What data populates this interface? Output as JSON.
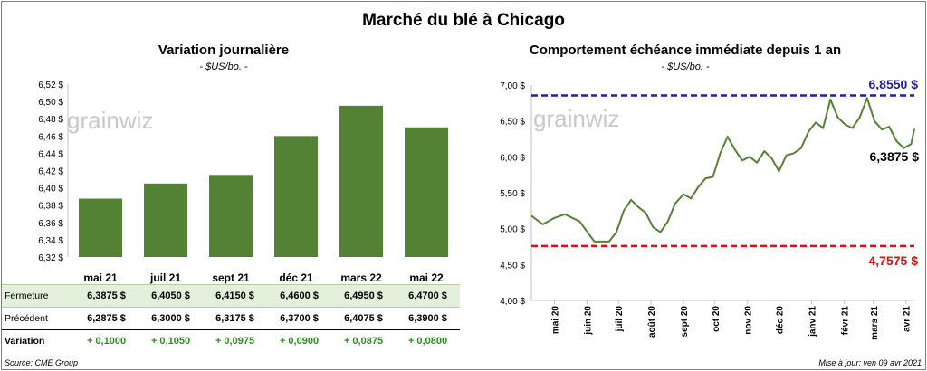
{
  "title": "Marché du blé à Chicago",
  "left": {
    "title": "Variation journalière",
    "subtitle": "- $US/bo. -",
    "watermark": "grainwiz",
    "table": {
      "rows": [
        {
          "label": "Fermeture",
          "values": [
            "6,3875 $",
            "6,4050 $",
            "6,4150 $",
            "6,4600 $",
            "6,4950 $",
            "6,4700 $"
          ]
        },
        {
          "label": "Précédent",
          "values": [
            "6,2875 $",
            "6,3000 $",
            "6,3175 $",
            "6,3700 $",
            "6,4075 $",
            "6,3900 $"
          ]
        },
        {
          "label": "Variation",
          "values": [
            "+ 0,1000",
            "+ 0,1050",
            "+ 0,0975",
            "+ 0,0900",
            "+ 0,0875",
            "+ 0,0800"
          ]
        }
      ]
    },
    "source": "Source: CME Group"
  },
  "right": {
    "title": "Comportement  échéance immédiate depuis 1 an",
    "subtitle": "- $US/bo. -",
    "watermark": "grainwiz",
    "high_label": "6,8550 $",
    "low_label": "4,7575 $",
    "last_label": "6,3875 $",
    "updated": "Mise à jour: ven 09 avr 2021"
  },
  "colors": {
    "bar": "#548235",
    "line": "#548235",
    "high": "#1f1fa8",
    "low": "#e01010",
    "positive": "#2e8b1e",
    "highlight_row": "#e2efda"
  },
  "chart_data": [
    {
      "type": "bar",
      "categories": [
        "mai 21",
        "juil 21",
        "sept 21",
        "déc 21",
        "mars 22",
        "mai 22"
      ],
      "values": [
        6.3875,
        6.405,
        6.415,
        6.46,
        6.495,
        6.47
      ],
      "title": "Variation journalière",
      "ylabel": "",
      "ylim": [
        6.32,
        6.52
      ],
      "yticks": [
        "6,32 $",
        "6,34 $",
        "6,36 $",
        "6,38 $",
        "6,40 $",
        "6,42 $",
        "6,44 $",
        "6,46 $",
        "6,48 $",
        "6,50 $",
        "6,52 $"
      ],
      "grid": false
    },
    {
      "type": "line",
      "title": "Comportement  échéance immédiate depuis 1 an",
      "ylim": [
        4.0,
        7.0
      ],
      "yticks": [
        "4,00 $",
        "4,50 $",
        "5,00 $",
        "5,50 $",
        "6,00 $",
        "6,50 $",
        "7,00 $"
      ],
      "xticks": [
        "mai 20",
        "juin 20",
        "juil 20",
        "août 20",
        "sept 20",
        "oct 20",
        "nov 20",
        "déc 20",
        "janv 21",
        "févr 21",
        "mars 21",
        "avr 21"
      ],
      "x": [
        "2020-04-09",
        "2020-04-20",
        "2020-05-01",
        "2020-05-11",
        "2020-05-25",
        "2020-06-08",
        "2020-06-22",
        "2020-06-29",
        "2020-07-06",
        "2020-07-13",
        "2020-07-20",
        "2020-07-27",
        "2020-08-03",
        "2020-08-10",
        "2020-08-17",
        "2020-08-24",
        "2020-09-01",
        "2020-09-08",
        "2020-09-15",
        "2020-09-22",
        "2020-09-29",
        "2020-10-06",
        "2020-10-13",
        "2020-10-20",
        "2020-10-27",
        "2020-11-03",
        "2020-11-10",
        "2020-11-17",
        "2020-11-24",
        "2020-12-01",
        "2020-12-08",
        "2020-12-15",
        "2020-12-22",
        "2020-12-29",
        "2021-01-05",
        "2021-01-12",
        "2021-01-19",
        "2021-01-26",
        "2021-02-02",
        "2021-02-09",
        "2021-02-16",
        "2021-02-23",
        "2021-03-02",
        "2021-03-09",
        "2021-03-16",
        "2021-03-23",
        "2021-03-30",
        "2021-04-06",
        "2021-04-09"
      ],
      "series": [
        {
          "values": [
            5.18,
            5.06,
            5.15,
            5.2,
            5.1,
            4.82,
            4.82,
            4.95,
            5.25,
            5.4,
            5.3,
            5.22,
            5.02,
            4.95,
            5.1,
            5.35,
            5.48,
            5.42,
            5.58,
            5.7,
            5.72,
            6.05,
            6.28,
            6.1,
            5.95,
            6.0,
            5.92,
            6.08,
            5.98,
            5.8,
            6.02,
            6.05,
            6.12,
            6.35,
            6.48,
            6.4,
            6.8,
            6.55,
            6.45,
            6.4,
            6.55,
            6.82,
            6.5,
            6.38,
            6.42,
            6.22,
            6.12,
            6.18,
            6.39
          ]
        }
      ],
      "hlines": [
        {
          "value": 6.855,
          "label": "6,8550 $"
        },
        {
          "value": 4.7575,
          "label": "4,7575 $"
        }
      ],
      "grid": false
    }
  ]
}
